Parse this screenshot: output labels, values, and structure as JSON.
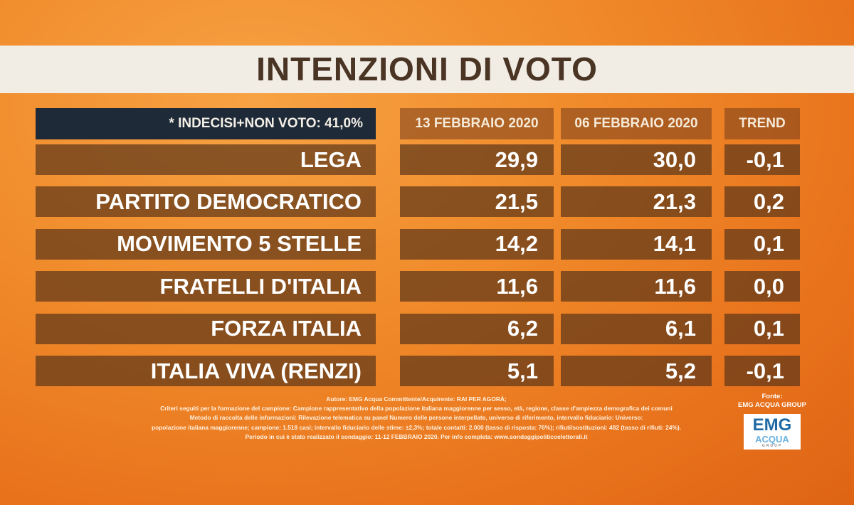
{
  "title": "INTENZIONI DI VOTO",
  "table": {
    "note": "* INDECISI+NON VOTO: 41,0%",
    "columns": [
      "13 FEBBRAIO 2020",
      "06 FEBBRAIO 2020",
      "TREND"
    ],
    "rows": [
      [
        "LEGA",
        "29,9",
        "30,0",
        "-0,1"
      ],
      [
        "PARTITO DEMOCRATICO",
        "21,5",
        "21,3",
        "0,2"
      ],
      [
        "MOVIMENTO 5 STELLE",
        "14,2",
        "14,1",
        "0,1"
      ],
      [
        "FRATELLI D'ITALIA",
        "11,6",
        "11,6",
        "0,0"
      ],
      [
        "FORZA ITALIA",
        "6,2",
        "6,1",
        "0,1"
      ],
      [
        "ITALIA VIVA (RENZI)",
        "5,1",
        "5,2",
        "-0,1"
      ]
    ]
  },
  "footer": [
    "Autore: EMG Acqua Committente/Acquirente: RAI PER AGORÀ;",
    "Criteri seguiti per la formazione del campione: Campione rappresentativo della popolazione italiana maggiorenne per sesso, età, regione, classe d'ampiezza demografica dei comuni",
    "Metodo di raccolta delle informazioni: Rilevazione telematica su panel Numero delle persone interpellate, universo di riferimento, intervallo fiduciario: Universo:",
    "popolazione italiana maggiorenne; campione: 1.518 casi; intervallo fiduciario delle stime: ±2,3%; totale contatti: 2.000 (tasso di risposta: 76%); rifiuti/sostituzioni: 482 (tasso di rifiuti: 24%).",
    "Periodo in cui è stato realizzato il sondaggio: 11-12 FEBBRAIO 2020. Per info completa: www.sondaggipoliticoelettorali.it"
  ],
  "source": {
    "label": "Fonte:",
    "name": "EMG ACQUA GROUP",
    "logo": [
      "EMG",
      "ACQUA",
      "GROUP"
    ]
  }
}
